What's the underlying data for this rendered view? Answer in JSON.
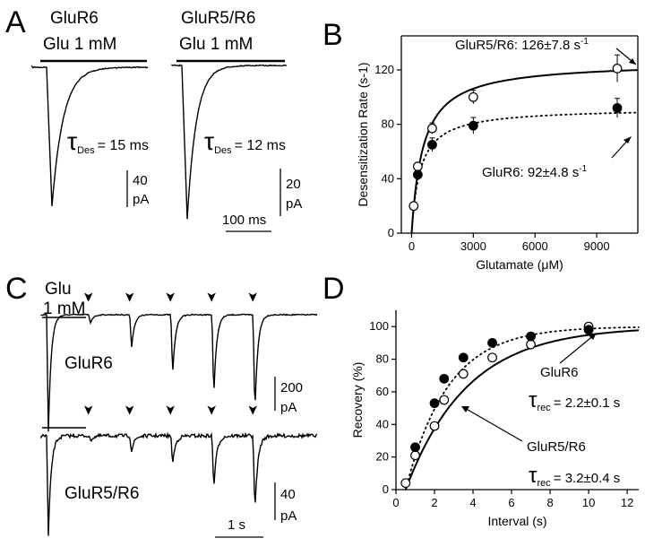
{
  "panels": {
    "A": {
      "label": "A",
      "traces": [
        {
          "gene": "GluR6",
          "stim": "Glu 1 mM",
          "tau_symbol": "τ",
          "tau_sub": "Des",
          "tau_text": "= 15 ms",
          "tau_ms": 15,
          "scale_value": "40",
          "scale_unit": "pA"
        },
        {
          "gene": "GluR5/R6",
          "stim": "Glu 1 mM",
          "tau_symbol": "τ",
          "tau_sub": "Des",
          "tau_text": "= 12 ms",
          "tau_ms": 12,
          "scale_value": "20",
          "scale_unit": "pA"
        }
      ],
      "time_scale": "100 ms"
    },
    "B": {
      "label": "B",
      "annotations": [
        {
          "name": "GluR5/R6",
          "text": "GluR5/R6: 126±7.8 s",
          "sup": "-1"
        },
        {
          "name": "GluR6",
          "text": "GluR6: 92±4.8 s",
          "sup": "-1"
        }
      ]
    },
    "C": {
      "label": "C",
      "stim_label": "Glu",
      "stim_conc": "1 mM",
      "arrow_symbol": "➤",
      "traces": [
        {
          "gene": "GluR6",
          "scale_value": "200",
          "scale_unit": "pA"
        },
        {
          "gene": "GluR5/R6",
          "scale_value": "40",
          "scale_unit": "pA"
        }
      ],
      "time_scale": "1 s",
      "intervals_s": [
        1,
        2,
        3,
        4,
        5
      ],
      "peak_fraction_GluR6": [
        0.07,
        0.29,
        0.52,
        0.71,
        0.86
      ],
      "peak_fraction_GluR5R6": [
        0.05,
        0.16,
        0.28,
        0.53,
        0.78
      ]
    },
    "D": {
      "label": "D",
      "annotations": [
        {
          "name": "GluR6",
          "title": "GluR6",
          "tau_symbol": "τ",
          "tau_sub": "rec",
          "tau_text": "= 2.2±0.1 s"
        },
        {
          "name": "GluR5/R6",
          "title": "GluR5/R6",
          "tau_symbol": "τ",
          "tau_sub": "rec",
          "tau_text": "= 3.2±0.4 s"
        }
      ]
    }
  },
  "chart_data": [
    {
      "type": "scatter",
      "panel": "B",
      "xlabel": "Glutamate (μM)",
      "ylabel": "Desensitization Rate (s-1)",
      "xlim": [
        -500,
        11000
      ],
      "ylim": [
        0,
        145
      ],
      "xticks": [
        0,
        3000,
        6000,
        9000
      ],
      "yticks": [
        0,
        40,
        80,
        120
      ],
      "series": [
        {
          "name": "GluR5/R6",
          "marker": "open-circle",
          "fit": "solid",
          "vmax": 126,
          "x": [
            100,
            300,
            1000,
            3000,
            10000
          ],
          "y": [
            20,
            49,
            77,
            100,
            121
          ],
          "err": [
            2,
            3,
            4,
            5,
            10
          ]
        },
        {
          "name": "GluR6",
          "marker": "filled-circle",
          "fit": "dotted",
          "vmax": 92,
          "x": [
            300,
            1000,
            3000,
            10000
          ],
          "y": [
            43,
            65,
            79,
            92
          ],
          "err": [
            3,
            5,
            6,
            7
          ]
        }
      ]
    },
    {
      "type": "scatter",
      "panel": "D",
      "xlabel": "Interval (s)",
      "ylabel": "Recovery (%)",
      "xlim": [
        0,
        12.6
      ],
      "ylim": [
        0,
        110
      ],
      "xticks": [
        0,
        2,
        4,
        6,
        8,
        10,
        12
      ],
      "yticks": [
        0,
        20,
        40,
        60,
        80,
        100
      ],
      "series": [
        {
          "name": "GluR5/R6",
          "marker": "open-circle",
          "fit": "solid",
          "tau_s": 3.2,
          "x": [
            0.5,
            1,
            2,
            2.5,
            3.5,
            5,
            7,
            10
          ],
          "y": [
            4,
            21,
            39,
            55,
            71,
            81,
            89,
            100
          ]
        },
        {
          "name": "GluR6",
          "marker": "filled-circle",
          "fit": "dotted",
          "tau_s": 2.2,
          "x": [
            1,
            2,
            2.5,
            3.5,
            5,
            7,
            10
          ],
          "y": [
            26,
            53,
            68,
            81,
            90,
            94,
            98
          ]
        }
      ]
    }
  ]
}
